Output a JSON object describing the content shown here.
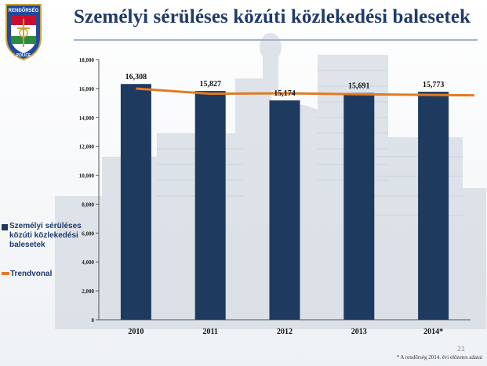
{
  "header": {
    "title": "Személyi sérüléses közúti közlekedési balesetek",
    "logo_top_text": "RENDŐRSÉG",
    "logo_bottom_text": "POLICE"
  },
  "chart_data": {
    "type": "bar",
    "categories": [
      "2010",
      "2011",
      "2012",
      "2013",
      "2014*"
    ],
    "series": [
      {
        "name": "Személyi sérüléses közúti közlekedési balesetek",
        "values": [
          16308,
          15827,
          15174,
          15691,
          15773
        ],
        "value_labels": [
          "16,308",
          "15,827",
          "15,174",
          "15,691",
          "15,773"
        ],
        "color": "#1f3a5f"
      },
      {
        "name": "Trendvonal",
        "type": "line",
        "values": [
          15994,
          15633,
          15671,
          15599,
          15551
        ],
        "color": "#e07b26"
      }
    ],
    "ylim": [
      0,
      18000
    ],
    "yticks": [
      "0",
      "2,000",
      "4,000",
      "6,000",
      "8,000",
      "10,000",
      "12,000",
      "14,000",
      "16,000",
      "18,000"
    ],
    "legend_position": "left",
    "grid": false
  },
  "legend": {
    "bars_label_line1": "Személyi sérüléses",
    "bars_label_line2": "közúti közlekedési",
    "bars_label_line3": "balesetek",
    "trend_label": "Trendvonal"
  },
  "footnote": "* A rendőrség 2014. évi előzetes adatai",
  "page_number": "21"
}
